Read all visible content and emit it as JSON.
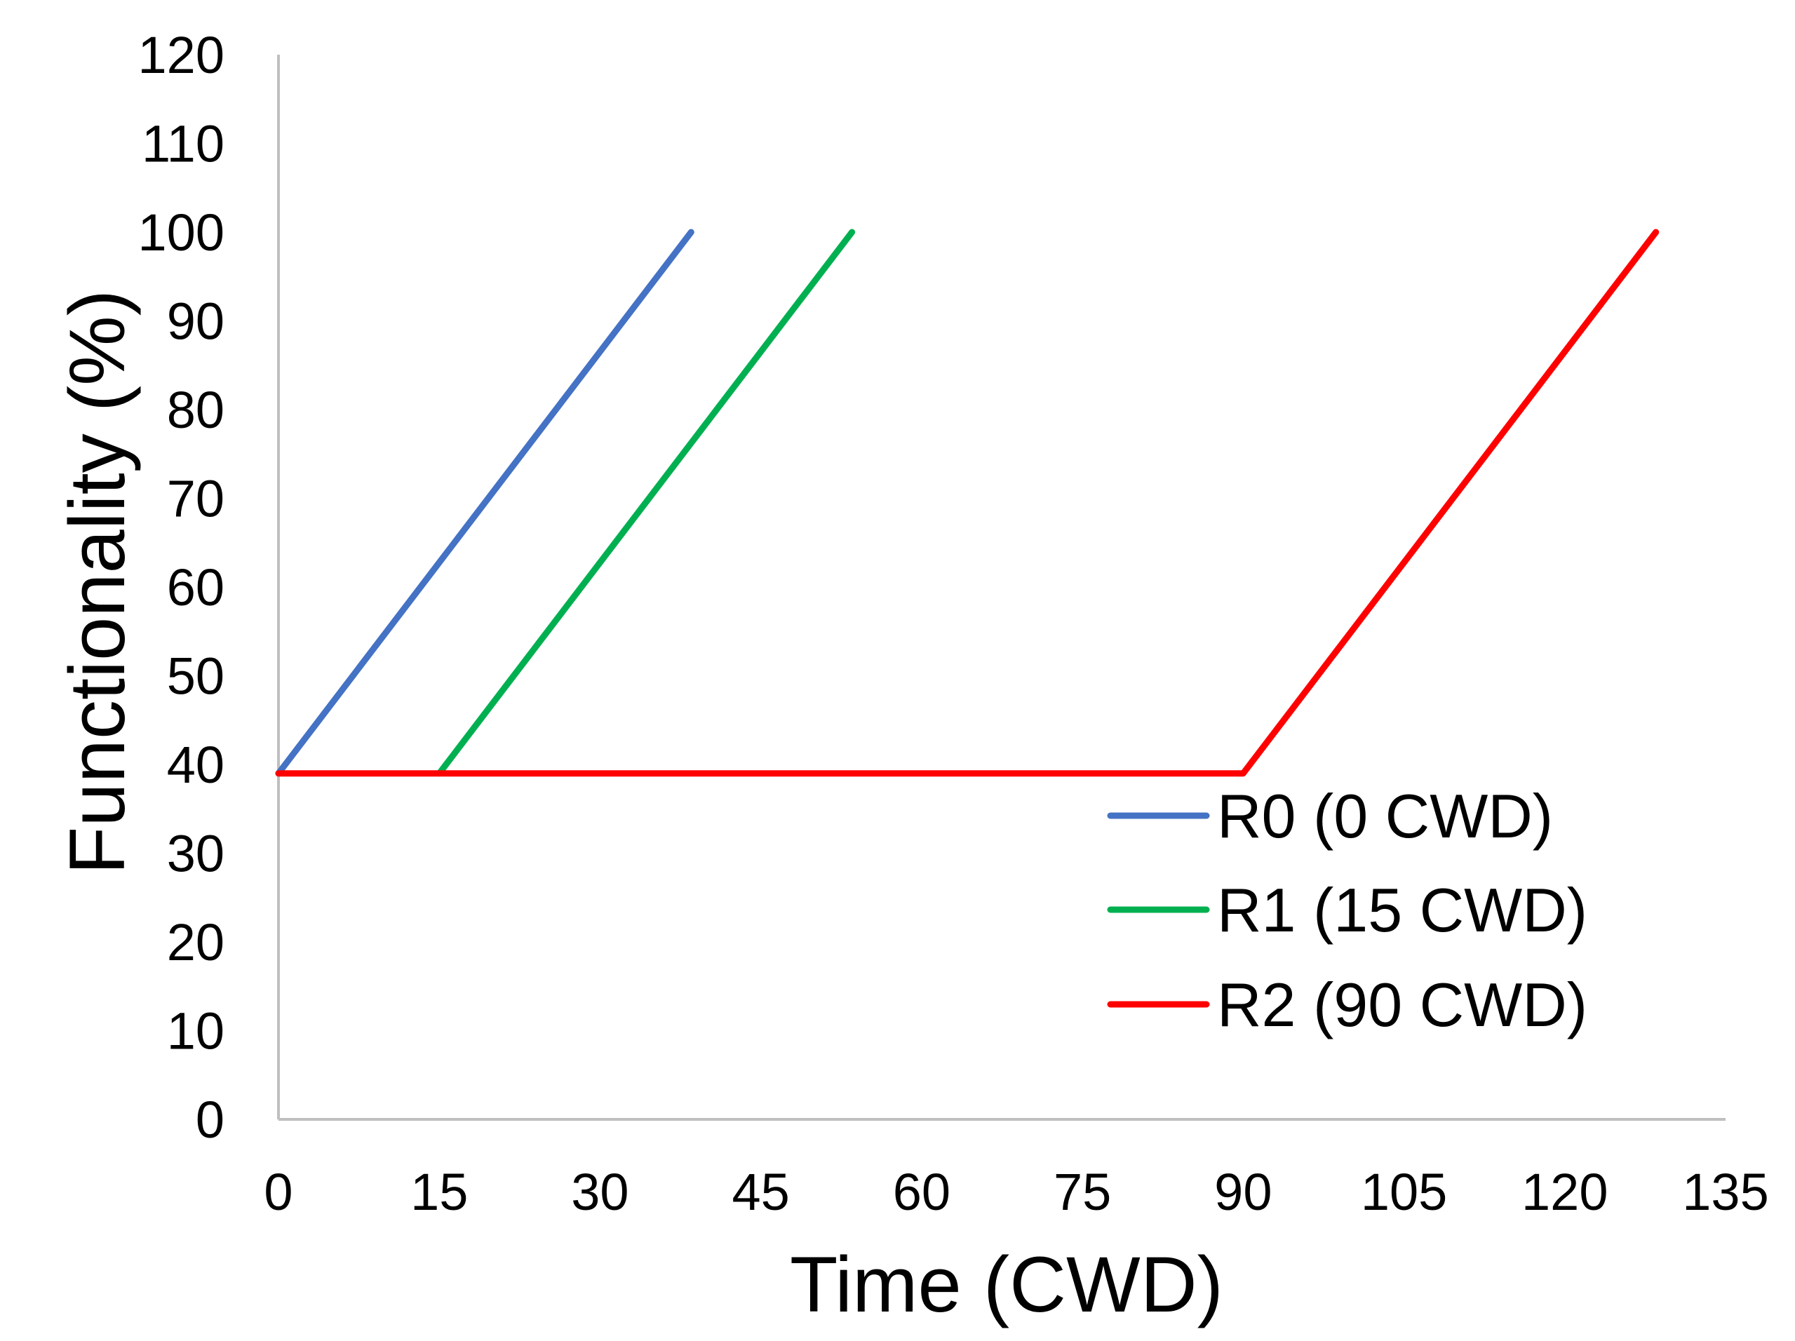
{
  "chart_data": {
    "type": "line",
    "title": "",
    "xlabel": "Time (CWD)",
    "ylabel": "Functionality (%)",
    "xlim": [
      0,
      135
    ],
    "ylim": [
      0,
      120
    ],
    "xticks": [
      0,
      15,
      30,
      45,
      60,
      75,
      90,
      105,
      120,
      135
    ],
    "yticks": [
      0,
      10,
      20,
      30,
      40,
      50,
      60,
      70,
      80,
      90,
      100,
      110,
      120
    ],
    "grid": false,
    "legend_position": "bottom-right",
    "series": [
      {
        "name": "R0 (0 CWD)",
        "color": "#4472C4",
        "points": [
          [
            0,
            39
          ],
          [
            38.5,
            100
          ]
        ]
      },
      {
        "name": "R1 (15 CWD)",
        "color": "#00B050",
        "points": [
          [
            15,
            39
          ],
          [
            53.5,
            100
          ]
        ]
      },
      {
        "name": "R2 (90 CWD)",
        "color": "#FF0000",
        "points": [
          [
            0,
            39
          ],
          [
            90,
            39
          ],
          [
            128.5,
            100
          ]
        ]
      }
    ]
  }
}
